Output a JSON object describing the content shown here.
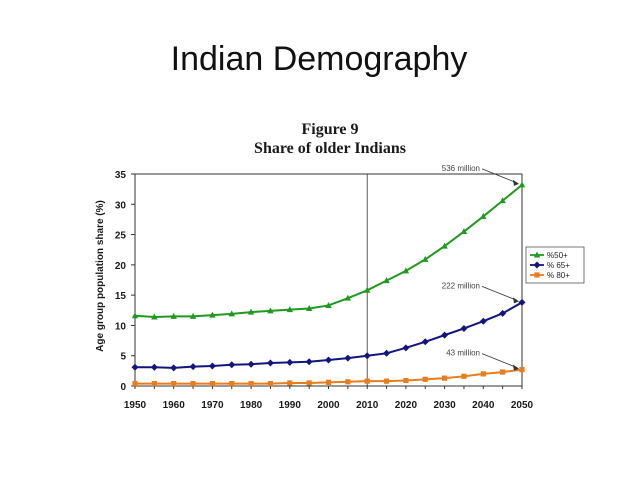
{
  "slide": {
    "title": "Indian Demography"
  },
  "chart_data": {
    "type": "line",
    "title": "Figure 9",
    "subtitle": "Share of older Indians",
    "ylabel": "Age group population share (%)",
    "xlabel": "",
    "x": [
      1950,
      1955,
      1960,
      1965,
      1970,
      1975,
      1980,
      1985,
      1990,
      1995,
      2000,
      2005,
      2010,
      2015,
      2020,
      2025,
      2030,
      2035,
      2040,
      2045,
      2050
    ],
    "xticks": [
      "1950",
      "1960",
      "1970",
      "1980",
      "1990",
      "2000",
      "2010",
      "2020",
      "2030",
      "2040",
      "2050"
    ],
    "yticks": [
      "0",
      "5",
      "10",
      "15",
      "20",
      "25",
      "30",
      "35"
    ],
    "xlim": [
      1950,
      2050
    ],
    "ylim": [
      0,
      35
    ],
    "grid": false,
    "reference_line_x": 2010,
    "legend_position": "right",
    "series": [
      {
        "name": "%50+",
        "color": "#1f9a1f",
        "marker": "triangle",
        "values": [
          11.6,
          11.4,
          11.5,
          11.5,
          11.7,
          11.9,
          12.2,
          12.4,
          12.6,
          12.8,
          13.3,
          14.5,
          15.8,
          17.4,
          19.0,
          20.9,
          23.1,
          25.5,
          28.0,
          30.6,
          33.2
        ]
      },
      {
        "name": "% 65+",
        "color": "#141480",
        "marker": "diamond",
        "values": [
          3.1,
          3.1,
          3.0,
          3.2,
          3.3,
          3.5,
          3.6,
          3.8,
          3.9,
          4.0,
          4.3,
          4.6,
          5.0,
          5.4,
          6.3,
          7.3,
          8.4,
          9.5,
          10.7,
          12.0,
          13.8
        ]
      },
      {
        "name": "% 80+",
        "color": "#e87d1e",
        "marker": "square",
        "values": [
          0.4,
          0.4,
          0.4,
          0.4,
          0.4,
          0.4,
          0.4,
          0.4,
          0.5,
          0.5,
          0.6,
          0.7,
          0.8,
          0.8,
          0.9,
          1.1,
          1.3,
          1.6,
          2.0,
          2.3,
          2.7
        ]
      }
    ],
    "annotations": [
      {
        "text": "536 million",
        "series": 0
      },
      {
        "text": "222 million",
        "series": 1
      },
      {
        "text": "43 million",
        "series": 2
      }
    ]
  }
}
